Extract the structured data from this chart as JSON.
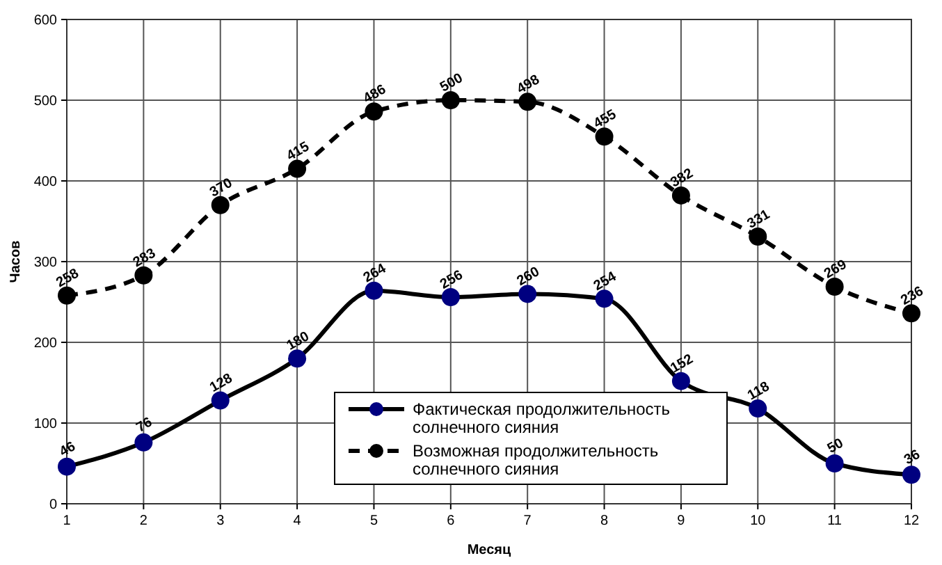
{
  "chart_data": {
    "type": "line",
    "xlabel": "Месяц",
    "ylabel": "Часов",
    "x": [
      1,
      2,
      3,
      4,
      5,
      6,
      7,
      8,
      9,
      10,
      11,
      12
    ],
    "xlim": [
      1,
      12
    ],
    "xticks": [
      1,
      2,
      3,
      4,
      5,
      6,
      7,
      8,
      9,
      10,
      11,
      12
    ],
    "ylim": [
      0,
      600
    ],
    "yticks": [
      0,
      100,
      200,
      300,
      400,
      500,
      600
    ],
    "grid": true,
    "legend": "bottom",
    "marker": "circle",
    "data_labels": true,
    "series": [
      {
        "name": "Фактическая продолжительность солнечного сияния",
        "color": "#000080",
        "line_style": "solid",
        "values": [
          46,
          76,
          128,
          180,
          264,
          256,
          260,
          254,
          152,
          118,
          50,
          36
        ]
      },
      {
        "name": "Возможная продолжительность солнечного сияния",
        "color": "#000000",
        "line_style": "dashed",
        "values": [
          258,
          283,
          370,
          415,
          486,
          500,
          498,
          455,
          382,
          331,
          269,
          236
        ]
      }
    ]
  }
}
